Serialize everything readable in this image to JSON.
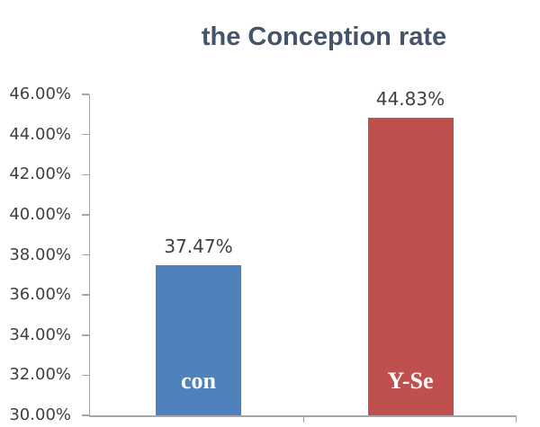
{
  "page": {
    "background_color": "#ffffff"
  },
  "chart_data": {
    "type": "bar",
    "title": "the Conception rate",
    "title_color": "#44546A",
    "categories": [
      "con",
      "Y-Se"
    ],
    "values": [
      37.47,
      44.83
    ],
    "data_labels": [
      "37.47%",
      "44.83%"
    ],
    "bar_colors": [
      "#4F81BD",
      "#C0504D"
    ],
    "category_label_color": "#FFFFFF",
    "xlabel": "",
    "ylabel": "",
    "ylim": [
      30,
      46
    ],
    "ytick_step": 2,
    "ytick_labels": [
      "46.00%",
      "44.00%",
      "42.00%",
      "40.00%",
      "38.00%",
      "36.00%",
      "34.00%",
      "32.00%",
      "30.00%"
    ],
    "grid": false,
    "legend_position": "none",
    "axis_color": "#A6A6A6",
    "label_text_color": "#404040"
  }
}
